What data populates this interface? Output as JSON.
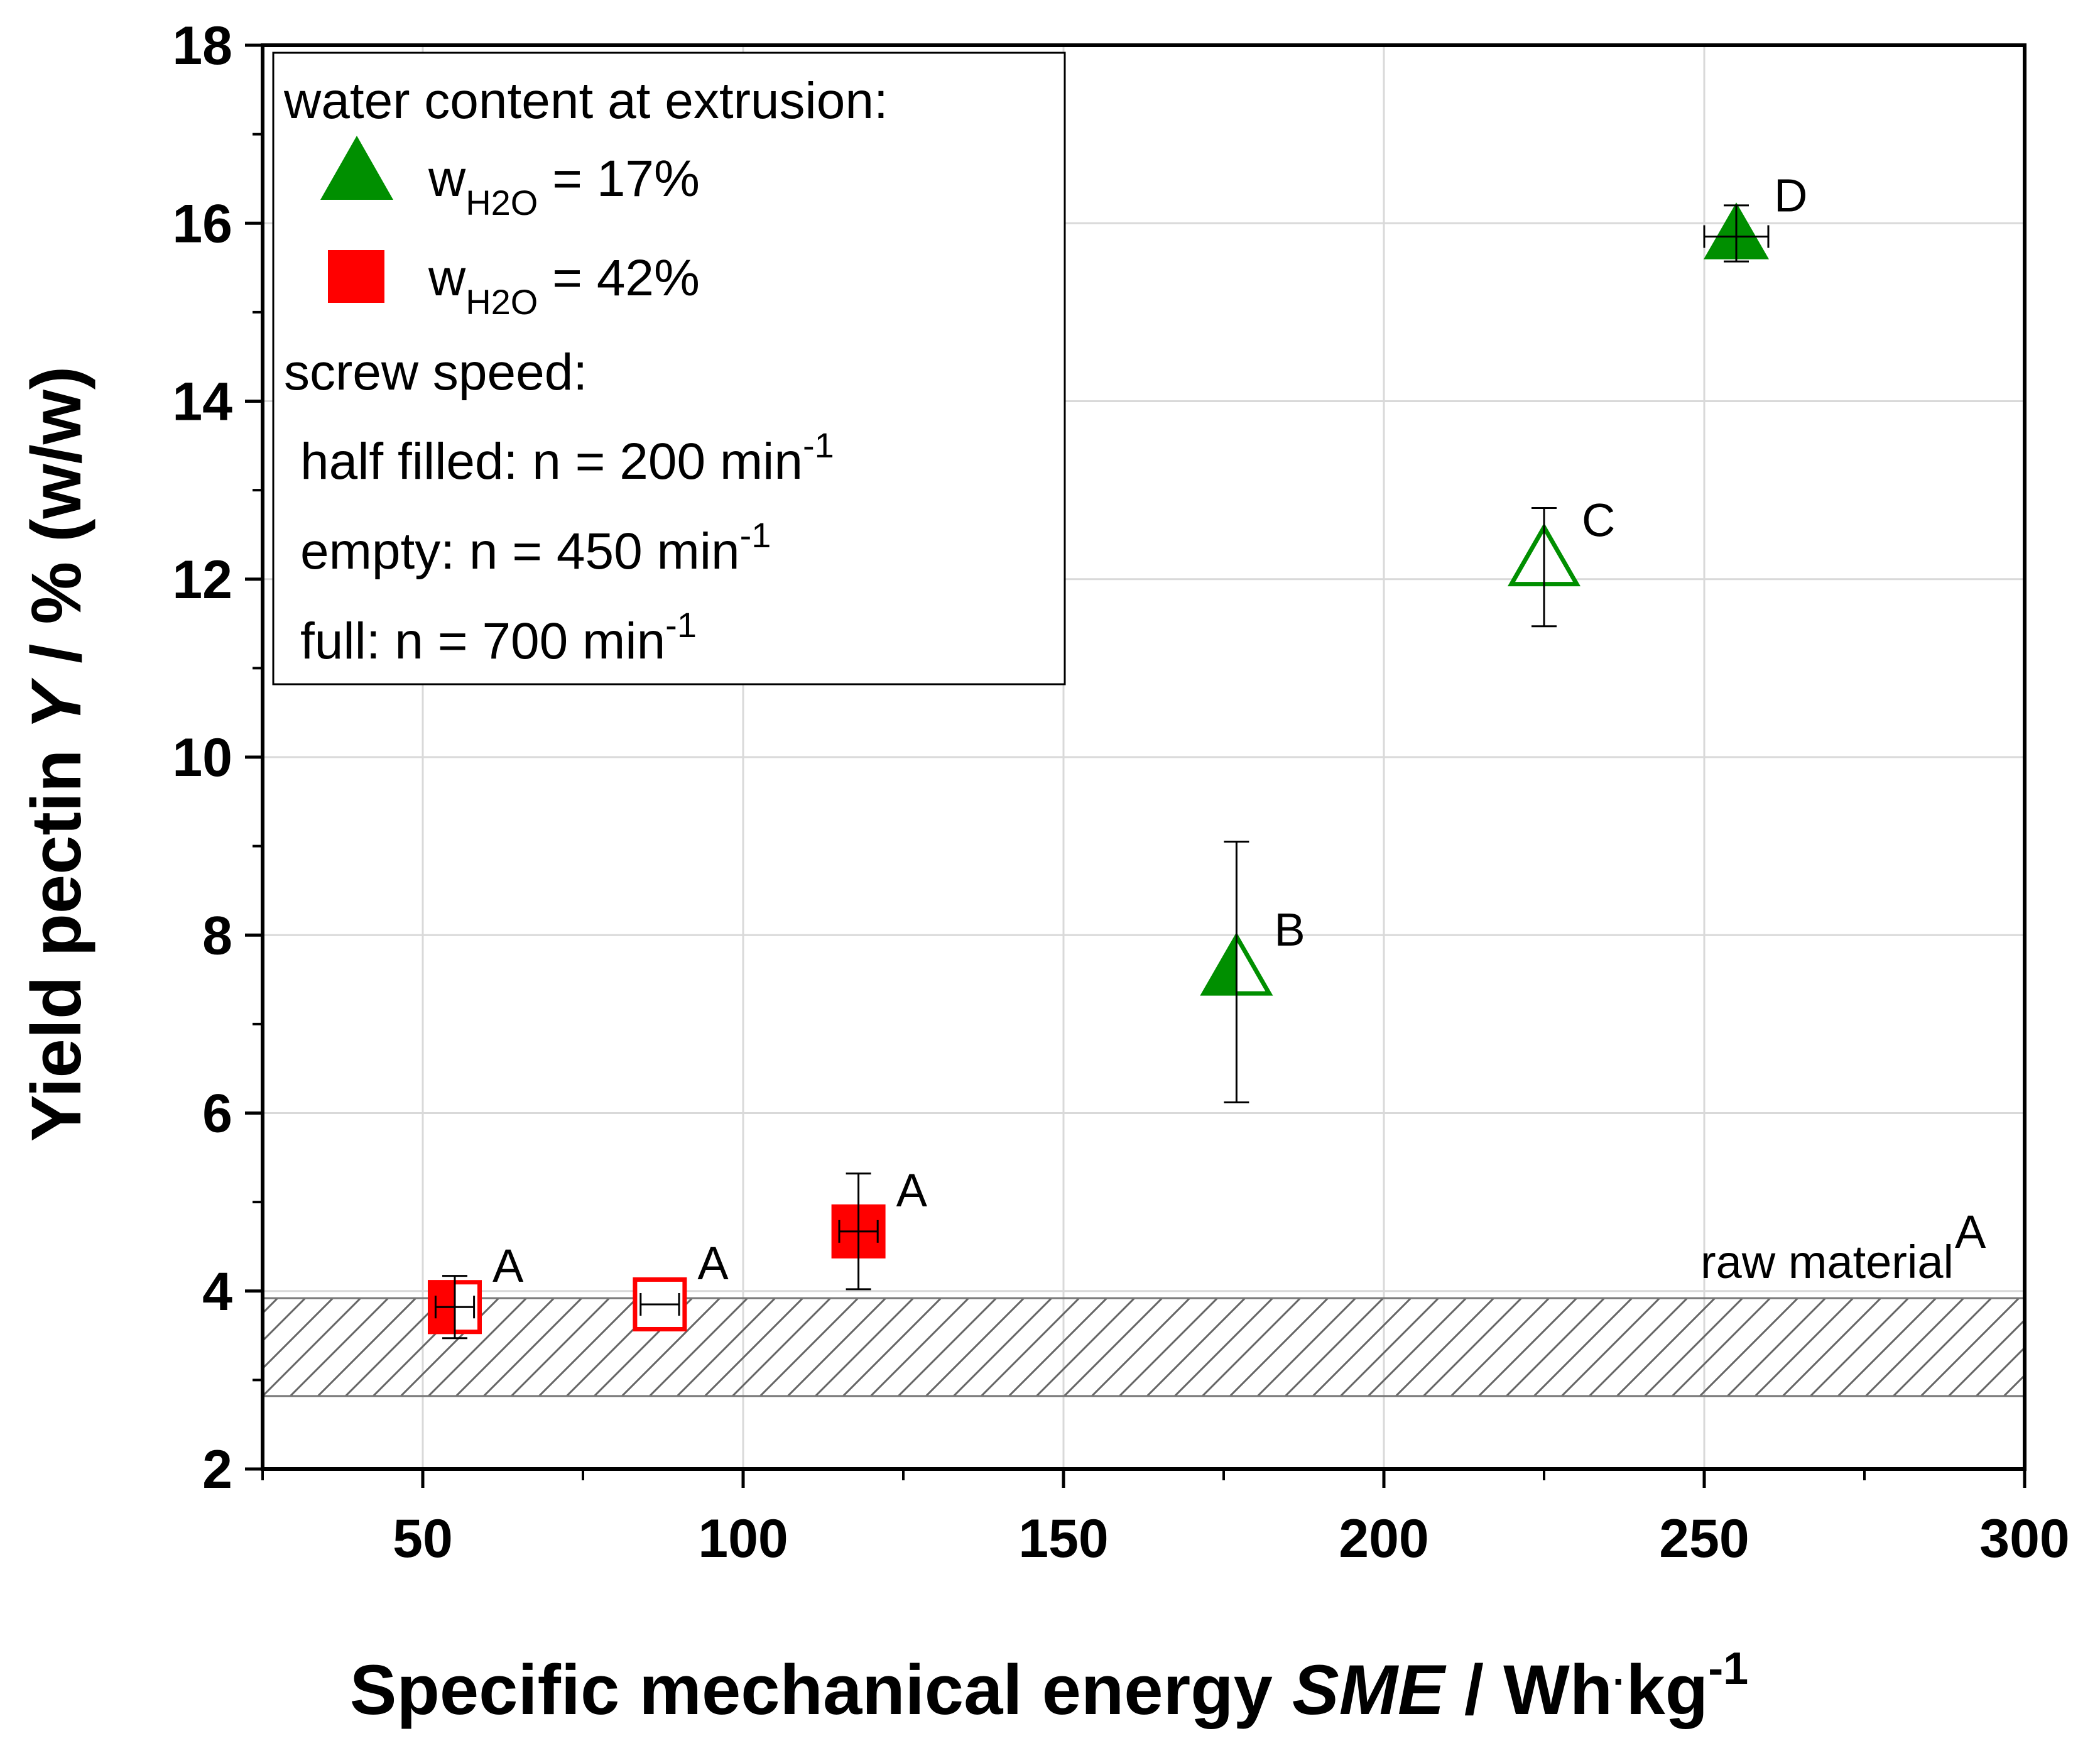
{
  "chart_data": {
    "type": "scatter",
    "title": "",
    "xlabel": {
      "text": "Specific mechanical energy ",
      "italic": "SME",
      "sep": " / ",
      "unit": "Wh",
      "dot": "·",
      "unit2": "kg",
      "sup": "-1"
    },
    "ylabel": {
      "text": "Yield pectin ",
      "italic": "Y",
      "rest": "  / % (w/w)"
    },
    "xlim": [
      25,
      300
    ],
    "ylim": [
      2,
      18
    ],
    "x_ticks": [
      "50",
      "100",
      "150",
      "200",
      "250",
      "300"
    ],
    "y_ticks": [
      "2",
      "4",
      "6",
      "8",
      "10",
      "12",
      "14",
      "16",
      "18"
    ],
    "grid": true,
    "colors": {
      "green": "#008f00",
      "red": "#ff0000"
    },
    "legend": {
      "placement": "top-left",
      "heading": "water content at extrusion:",
      "entries": [
        {
          "marker": "triangle",
          "color": "#008f00",
          "prefix": "w",
          "sub": "H2O",
          "suffix": " = 17%"
        },
        {
          "marker": "square",
          "color": "#ff0000",
          "prefix": "w",
          "sub": "H2O",
          "suffix": " = 42%"
        }
      ],
      "speed_heading": "screw speed:",
      "speeds": [
        {
          "text": "half filled: n = 200 min",
          "sup": "-1"
        },
        {
          "text": "empty: n = 450 min",
          "sup": "-1"
        },
        {
          "text": "full: n = 700 min",
          "sup": "-1"
        }
      ]
    },
    "raw_material": {
      "y_low": 2.82,
      "y_high": 3.92,
      "label": "raw material",
      "sup": "A"
    },
    "series": [
      {
        "name": "w_H2O = 17%",
        "marker": "triangle",
        "color": "#008f00",
        "points": [
          {
            "x": 177,
            "y": 7.6,
            "fill": "half",
            "yerr": [
              6.12,
              9.05
            ],
            "xerr": [
              177,
              177
            ],
            "label": "B"
          },
          {
            "x": 225,
            "y": 12.2,
            "fill": "empty",
            "yerr": [
              11.47,
              12.8
            ],
            "xerr": [
              225,
              225
            ],
            "label": "C"
          },
          {
            "x": 255,
            "y": 15.85,
            "fill": "full",
            "yerr": [
              15.57,
              16.2
            ],
            "xerr": [
              250,
              260
            ],
            "label": "D"
          }
        ]
      },
      {
        "name": "w_H2O = 42%",
        "marker": "square",
        "color": "#ff0000",
        "points": [
          {
            "x": 55,
            "y": 3.82,
            "fill": "half",
            "yerr": [
              3.47,
              4.17
            ],
            "xerr": [
              52,
              58
            ],
            "label": "A"
          },
          {
            "x": 87,
            "y": 3.85,
            "fill": "empty",
            "yerr": [
              3.85,
              3.85
            ],
            "xerr": [
              84,
              90
            ],
            "label": "A"
          },
          {
            "x": 118,
            "y": 4.67,
            "fill": "full",
            "yerr": [
              4.02,
              5.32
            ],
            "xerr": [
              115,
              121
            ],
            "label": "A"
          }
        ]
      }
    ]
  }
}
